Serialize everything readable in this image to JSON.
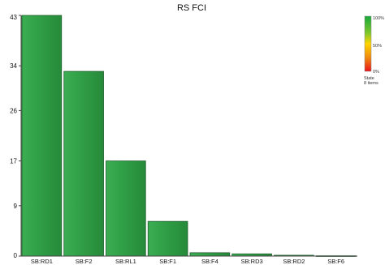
{
  "chart_data": {
    "type": "bar",
    "title": "RS FCI",
    "categories": [
      "SB:RD1",
      "SB:F2",
      "SB:RL1",
      "SB:F1",
      "SB:F4",
      "SB:RD3",
      "SB:RD2",
      "SB:F6"
    ],
    "values": [
      43,
      33,
      17,
      6.2,
      0.6,
      0.4,
      0.15,
      0.05
    ],
    "yticks": [
      "0",
      "9",
      "17",
      "26",
      "34",
      "43"
    ],
    "ytick_values": [
      0,
      9,
      17,
      26,
      34,
      43
    ],
    "ylim": [
      0,
      43
    ],
    "xlabel": "",
    "ylabel": "",
    "grid": false,
    "legend": {
      "position": "top-right",
      "labels": {
        "top": "100%",
        "mid": "50%",
        "bottom": "0%",
        "state": "State",
        "items": "8 items"
      },
      "gradient_colors": [
        "#18a83a",
        "#b8d624",
        "#ffd400",
        "#f08a10",
        "#e8131b"
      ]
    },
    "colors": {
      "bar_fill": "#2f9e45",
      "bar_highlight": "#58c06a",
      "bar_stroke": "#1d5e2b",
      "axis": "#444444"
    }
  }
}
